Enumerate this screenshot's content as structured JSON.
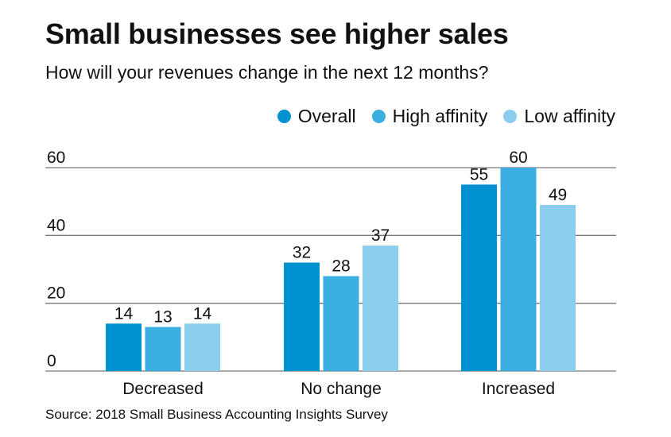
{
  "title": "Small businesses see higher sales",
  "subtitle": "How will your revenues change in the next 12 months?",
  "source": "Source: 2018 Small Business Accounting Insights Survey",
  "chart_data": {
    "type": "bar",
    "categories": [
      "Decreased",
      "No change",
      "Increased"
    ],
    "series": [
      {
        "name": "Overall",
        "color": "#0092d0",
        "values": [
          14,
          32,
          55
        ]
      },
      {
        "name": "High affinity",
        "color": "#3aaee0",
        "values": [
          13,
          28,
          60
        ]
      },
      {
        "name": "Low affinity",
        "color": "#8bcdec",
        "values": [
          14,
          37,
          49
        ]
      }
    ],
    "ylim": [
      0,
      60
    ],
    "yticks": [
      0,
      20,
      40,
      60
    ],
    "grid": true,
    "legend": "top-right",
    "data_labels": true
  }
}
